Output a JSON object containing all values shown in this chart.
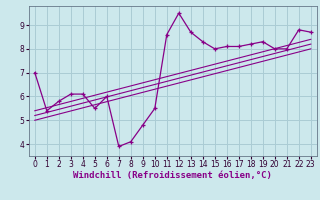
{
  "xlabel": "Windchill (Refroidissement éolien,°C)",
  "background_color": "#cce8ec",
  "line_color": "#880088",
  "grid_color": "#aaccd4",
  "xlim": [
    -0.5,
    23.5
  ],
  "ylim": [
    3.5,
    9.8
  ],
  "xticks": [
    0,
    1,
    2,
    3,
    4,
    5,
    6,
    7,
    8,
    9,
    10,
    11,
    12,
    13,
    14,
    15,
    16,
    17,
    18,
    19,
    20,
    21,
    22,
    23
  ],
  "yticks": [
    4,
    5,
    6,
    7,
    8,
    9
  ],
  "main_x": [
    0,
    1,
    2,
    3,
    4,
    5,
    6,
    7,
    8,
    9,
    10,
    11,
    12,
    13,
    14,
    15,
    16,
    17,
    18,
    19,
    20,
    21,
    22,
    23
  ],
  "main_y": [
    7.0,
    5.4,
    5.8,
    6.1,
    6.1,
    5.5,
    6.0,
    3.9,
    4.1,
    4.8,
    5.5,
    8.6,
    9.5,
    8.7,
    8.3,
    8.0,
    8.1,
    8.1,
    8.2,
    8.3,
    8.0,
    8.0,
    8.8,
    8.7
  ],
  "reg_lines": [
    {
      "x": [
        0,
        23
      ],
      "y": [
        5.0,
        8.0
      ]
    },
    {
      "x": [
        0,
        23
      ],
      "y": [
        5.2,
        8.2
      ]
    },
    {
      "x": [
        0,
        23
      ],
      "y": [
        5.4,
        8.4
      ]
    }
  ],
  "tick_fontsize": 5.5,
  "label_fontsize": 6.5
}
